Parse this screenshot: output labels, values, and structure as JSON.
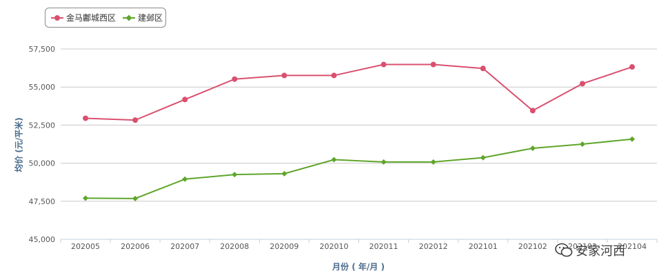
{
  "chart_data": {
    "type": "line",
    "categories": [
      "202005",
      "202006",
      "202007",
      "202008",
      "202009",
      "202010",
      "202011",
      "202012",
      "202101",
      "202102",
      "202103",
      "202104"
    ],
    "series": [
      {
        "name": "金马鄘城西区",
        "color": "#d9506f",
        "marker": "circle",
        "values": [
          52950,
          52830,
          54180,
          55520,
          55760,
          55760,
          56480,
          56480,
          56220,
          53450,
          55220,
          56320
        ]
      },
      {
        "name": "建邺区",
        "color": "#5ea52a",
        "marker": "diamond",
        "values": [
          47700,
          47680,
          48950,
          49250,
          49310,
          50230,
          50080,
          50080,
          50360,
          50980,
          51250,
          51580
        ]
      }
    ],
    "ylim": [
      45000,
      57500
    ],
    "yticks": [
      "45,000",
      "47,500",
      "50,000",
      "52,500",
      "55,000",
      "57,500"
    ],
    "ytick_values": [
      45000,
      47500,
      50000,
      52500,
      55000,
      57500
    ],
    "ylabel": "均价 (元/平米)",
    "xlabel": "月份 ( 年/月 )",
    "grid": true,
    "legend_position": "top-left"
  },
  "watermark": {
    "text": "安家河西"
  }
}
